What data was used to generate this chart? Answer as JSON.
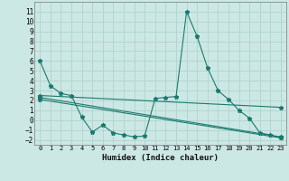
{
  "title": "",
  "xlabel": "Humidex (Indice chaleur)",
  "ylabel": "",
  "background_color": "#cce8e4",
  "grid_color": "#aacfcb",
  "line_color": "#1a7a6e",
  "xlim": [
    -0.5,
    23.5
  ],
  "ylim": [
    -2.5,
    12.0
  ],
  "xticks": [
    0,
    1,
    2,
    3,
    4,
    5,
    6,
    7,
    8,
    9,
    10,
    11,
    12,
    13,
    14,
    15,
    16,
    17,
    18,
    19,
    20,
    21,
    22,
    23
  ],
  "yticks": [
    -2,
    -1,
    0,
    1,
    2,
    3,
    4,
    5,
    6,
    7,
    8,
    9,
    10,
    11
  ],
  "series": [
    {
      "x": [
        0,
        1,
        2,
        3,
        4,
        5,
        6,
        7,
        8,
        9,
        10,
        11,
        12,
        13,
        14,
        15,
        16,
        17,
        18,
        19,
        20,
        21,
        22,
        23
      ],
      "y": [
        6.0,
        3.5,
        2.7,
        2.5,
        0.3,
        -1.2,
        -0.5,
        -1.3,
        -1.5,
        -1.7,
        -1.6,
        2.2,
        2.3,
        2.4,
        11.0,
        8.5,
        5.3,
        3.0,
        2.1,
        1.0,
        0.2,
        -1.3,
        -1.5,
        -1.8
      ]
    },
    {
      "x": [
        0,
        23
      ],
      "y": [
        2.5,
        1.3
      ]
    },
    {
      "x": [
        0,
        23
      ],
      "y": [
        2.3,
        -1.7
      ]
    },
    {
      "x": [
        0,
        23
      ],
      "y": [
        2.1,
        -1.8
      ]
    }
  ]
}
